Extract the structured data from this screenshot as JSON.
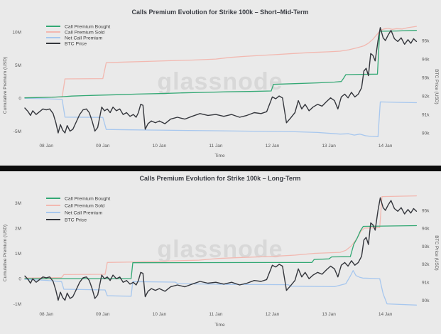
{
  "page": {
    "background_color": "#eaeaea",
    "divider_color": "#0d0d0d",
    "watermark_text": "glassnode",
    "watermark_color": "#d8d8d8",
    "title_color": "#3a3d44",
    "tick_color": "#5a5a5a"
  },
  "btc_price_kusd": [
    [
      7.62,
      91.35
    ],
    [
      7.68,
      91.15
    ],
    [
      7.72,
      90.95
    ],
    [
      7.76,
      91.2
    ],
    [
      7.82,
      91.0
    ],
    [
      7.88,
      91.15
    ],
    [
      7.94,
      91.3
    ],
    [
      8.0,
      91.25
    ],
    [
      8.06,
      91.3
    ],
    [
      8.12,
      91.05
    ],
    [
      8.17,
      90.55
    ],
    [
      8.21,
      90.0
    ],
    [
      8.25,
      90.45
    ],
    [
      8.29,
      90.15
    ],
    [
      8.33,
      90.0
    ],
    [
      8.37,
      90.4
    ],
    [
      8.42,
      90.1
    ],
    [
      8.47,
      90.2
    ],
    [
      8.53,
      90.6
    ],
    [
      8.59,
      91.0
    ],
    [
      8.65,
      91.25
    ],
    [
      8.71,
      91.3
    ],
    [
      8.76,
      91.1
    ],
    [
      8.81,
      90.65
    ],
    [
      8.86,
      90.1
    ],
    [
      8.91,
      90.3
    ],
    [
      8.98,
      91.4
    ],
    [
      9.03,
      91.2
    ],
    [
      9.08,
      91.3
    ],
    [
      9.13,
      91.1
    ],
    [
      9.18,
      91.4
    ],
    [
      9.24,
      91.2
    ],
    [
      9.3,
      91.3
    ],
    [
      9.36,
      91.0
    ],
    [
      9.42,
      91.1
    ],
    [
      9.48,
      90.9
    ],
    [
      9.54,
      91.0
    ],
    [
      9.59,
      90.85
    ],
    [
      9.63,
      91.1
    ],
    [
      9.67,
      91.55
    ],
    [
      9.71,
      91.5
    ],
    [
      9.75,
      90.2
    ],
    [
      9.8,
      90.5
    ],
    [
      9.86,
      90.65
    ],
    [
      9.93,
      90.55
    ],
    [
      10.0,
      90.65
    ],
    [
      10.1,
      90.5
    ],
    [
      10.2,
      90.75
    ],
    [
      10.32,
      90.85
    ],
    [
      10.45,
      90.75
    ],
    [
      10.58,
      90.9
    ],
    [
      10.72,
      91.05
    ],
    [
      10.86,
      90.95
    ],
    [
      11.0,
      91.0
    ],
    [
      11.14,
      90.9
    ],
    [
      11.28,
      91.0
    ],
    [
      11.42,
      90.85
    ],
    [
      11.55,
      90.95
    ],
    [
      11.68,
      91.1
    ],
    [
      11.8,
      91.05
    ],
    [
      11.9,
      91.15
    ],
    [
      12.0,
      91.95
    ],
    [
      12.06,
      91.85
    ],
    [
      12.12,
      92.0
    ],
    [
      12.18,
      91.9
    ],
    [
      12.25,
      90.55
    ],
    [
      12.32,
      90.8
    ],
    [
      12.4,
      91.1
    ],
    [
      12.46,
      91.75
    ],
    [
      12.52,
      91.3
    ],
    [
      12.58,
      91.55
    ],
    [
      12.65,
      91.2
    ],
    [
      12.72,
      91.4
    ],
    [
      12.8,
      91.55
    ],
    [
      12.88,
      91.45
    ],
    [
      12.96,
      91.7
    ],
    [
      13.03,
      91.9
    ],
    [
      13.1,
      91.75
    ],
    [
      13.16,
      91.3
    ],
    [
      13.22,
      91.95
    ],
    [
      13.28,
      92.1
    ],
    [
      13.34,
      91.9
    ],
    [
      13.4,
      92.2
    ],
    [
      13.46,
      91.95
    ],
    [
      13.52,
      92.1
    ],
    [
      13.58,
      92.45
    ],
    [
      13.62,
      93.35
    ],
    [
      13.66,
      93.5
    ],
    [
      13.7,
      93.1
    ],
    [
      13.74,
      94.3
    ],
    [
      13.78,
      94.2
    ],
    [
      13.82,
      93.9
    ],
    [
      13.87,
      95.0
    ],
    [
      13.91,
      95.7
    ],
    [
      13.96,
      95.15
    ],
    [
      14.0,
      95.0
    ],
    [
      14.05,
      95.3
    ],
    [
      14.1,
      95.55
    ],
    [
      14.16,
      95.1
    ],
    [
      14.22,
      94.95
    ],
    [
      14.28,
      95.15
    ],
    [
      14.34,
      94.8
    ],
    [
      14.4,
      95.05
    ],
    [
      14.45,
      94.85
    ],
    [
      14.5,
      95.1
    ],
    [
      14.55,
      94.95
    ]
  ],
  "chart_data": [
    {
      "type": "line",
      "title": "Calls Premium Evolution for Strike 100k – Short–Mid-Term",
      "xlabel": "Time",
      "ylabel_left": "Cumulative Premium (USD)",
      "ylabel_right": "BTC Price (USD)",
      "watermark": "glassnode",
      "x_unit_note": "day of January",
      "xlim": [
        7.545,
        14.595
      ],
      "ylim_left_musd": [
        -7.74,
        11.61
      ],
      "ylim_right_kusd": [
        89.12,
        96.04
      ],
      "x_ticks": [
        {
          "v": 8,
          "label": "08 Jan"
        },
        {
          "v": 9,
          "label": "09 Jan"
        },
        {
          "v": 10,
          "label": "10 Jan"
        },
        {
          "v": 11,
          "label": "11 Jan"
        },
        {
          "v": 12,
          "label": "12 Jan"
        },
        {
          "v": 13,
          "label": "13 Jan"
        },
        {
          "v": 14,
          "label": "14 Jan"
        }
      ],
      "y_ticks_left": [
        {
          "v": 10,
          "label": "10M"
        },
        {
          "v": 5,
          "label": "5M"
        },
        {
          "v": 0,
          "label": "0"
        },
        {
          "v": -5,
          "label": "-5M"
        }
      ],
      "y_ticks_right": [
        {
          "v": 95,
          "label": "95k"
        },
        {
          "v": 94,
          "label": "94k"
        },
        {
          "v": 93,
          "label": "93k"
        },
        {
          "v": 92,
          "label": "92k"
        },
        {
          "v": 91,
          "label": "91k"
        },
        {
          "v": 90,
          "label": "90k"
        }
      ],
      "series": [
        {
          "name": "Call Premium Bought",
          "color": "#33a874",
          "axis": "left",
          "points": [
            [
              7.62,
              0.03
            ],
            [
              8.1,
              0.12
            ],
            [
              8.3,
              0.22
            ],
            [
              8.45,
              0.3
            ],
            [
              8.7,
              0.38
            ],
            [
              9.0,
              0.45
            ],
            [
              9.3,
              0.52
            ],
            [
              9.6,
              0.6
            ],
            [
              10.0,
              0.68
            ],
            [
              10.4,
              0.78
            ],
            [
              10.8,
              0.86
            ],
            [
              11.2,
              0.95
            ],
            [
              11.6,
              1.0
            ],
            [
              11.98,
              1.07
            ],
            [
              12.02,
              2.08
            ],
            [
              12.4,
              2.18
            ],
            [
              12.8,
              2.3
            ],
            [
              13.1,
              2.42
            ],
            [
              13.22,
              2.5
            ],
            [
              13.26,
              3.0
            ],
            [
              13.3,
              3.55
            ],
            [
              13.86,
              3.62
            ],
            [
              13.9,
              10.1
            ],
            [
              14.2,
              10.15
            ],
            [
              14.55,
              10.25
            ]
          ]
        },
        {
          "name": "Call Premium Sold",
          "color": "#f2b8b0",
          "axis": "left",
          "points": [
            [
              7.62,
              0.06
            ],
            [
              8.0,
              0.12
            ],
            [
              8.28,
              0.16
            ],
            [
              8.33,
              2.9
            ],
            [
              9.0,
              2.95
            ],
            [
              9.06,
              5.35
            ],
            [
              9.4,
              5.45
            ],
            [
              9.8,
              5.55
            ],
            [
              10.2,
              5.65
            ],
            [
              10.6,
              5.75
            ],
            [
              11.0,
              5.9
            ],
            [
              11.25,
              6.15
            ],
            [
              11.5,
              6.3
            ],
            [
              11.8,
              6.45
            ],
            [
              12.1,
              6.6
            ],
            [
              12.4,
              6.75
            ],
            [
              12.7,
              6.9
            ],
            [
              13.0,
              7.0
            ],
            [
              13.2,
              7.1
            ],
            [
              13.35,
              7.3
            ],
            [
              13.5,
              7.6
            ],
            [
              13.62,
              7.9
            ],
            [
              13.7,
              8.3
            ],
            [
              13.78,
              8.9
            ],
            [
              13.85,
              9.6
            ],
            [
              13.91,
              10.2
            ],
            [
              13.97,
              10.45
            ],
            [
              14.05,
              10.55
            ],
            [
              14.12,
              10.4
            ],
            [
              14.2,
              10.5
            ],
            [
              14.3,
              10.45
            ],
            [
              14.4,
              10.65
            ],
            [
              14.55,
              10.85
            ]
          ]
        },
        {
          "name": "Net Call Premium",
          "color": "#a7c7ee",
          "axis": "left",
          "points": [
            [
              7.62,
              -0.04
            ],
            [
              8.0,
              -0.1
            ],
            [
              8.28,
              -0.2
            ],
            [
              8.33,
              -2.88
            ],
            [
              9.0,
              -2.92
            ],
            [
              9.06,
              -4.75
            ],
            [
              9.5,
              -4.8
            ],
            [
              10.0,
              -4.85
            ],
            [
              10.5,
              -4.9
            ],
            [
              11.0,
              -4.95
            ],
            [
              11.5,
              -5.0
            ],
            [
              12.0,
              -5.05
            ],
            [
              12.4,
              -5.1
            ],
            [
              12.8,
              -5.2
            ],
            [
              13.05,
              -5.35
            ],
            [
              13.2,
              -5.45
            ],
            [
              13.35,
              -5.4
            ],
            [
              13.45,
              -5.6
            ],
            [
              13.55,
              -5.45
            ],
            [
              13.65,
              -5.7
            ],
            [
              13.75,
              -5.8
            ],
            [
              13.87,
              -5.85
            ],
            [
              13.91,
              -0.58
            ],
            [
              14.2,
              -0.65
            ],
            [
              14.55,
              -0.7
            ]
          ]
        },
        {
          "name": "BTC Price",
          "color": "#34363c",
          "axis": "right",
          "points_ref": "btc_price_kusd"
        }
      ]
    },
    {
      "type": "line",
      "title": "Calls Premium Evolution for Strike 100k – Long-Term",
      "xlabel": "Time",
      "ylabel_left": "Cumulative Premium (USD)",
      "ylabel_right": "BTC Price (USD)",
      "watermark": "glassnode",
      "x_unit_note": "day of January",
      "xlim": [
        7.545,
        14.595
      ],
      "ylim_left_musd": [
        -1.35,
        3.38
      ],
      "ylim_right_kusd": [
        89.31,
        95.95
      ],
      "x_ticks": [
        {
          "v": 8,
          "label": "08 Jan"
        },
        {
          "v": 9,
          "label": "09 Jan"
        },
        {
          "v": 10,
          "label": "10 Jan"
        },
        {
          "v": 11,
          "label": "11 Jan"
        },
        {
          "v": 12,
          "label": "12 Jan"
        },
        {
          "v": 13,
          "label": "13 Jan"
        },
        {
          "v": 14,
          "label": "14 Jan"
        }
      ],
      "y_ticks_left": [
        {
          "v": 3,
          "label": "3M"
        },
        {
          "v": 2,
          "label": "2M"
        },
        {
          "v": 1,
          "label": "1M"
        },
        {
          "v": 0,
          "label": "0"
        },
        {
          "v": -1,
          "label": "-1M"
        }
      ],
      "y_ticks_right": [
        {
          "v": 95,
          "label": "95k"
        },
        {
          "v": 94,
          "label": "94k"
        },
        {
          "v": 93,
          "label": "93k"
        },
        {
          "v": 92,
          "label": "92k"
        },
        {
          "v": 91,
          "label": "91k"
        },
        {
          "v": 90,
          "label": "90k"
        }
      ],
      "series": [
        {
          "name": "Call Premium Bought",
          "color": "#33a874",
          "axis": "left",
          "points": [
            [
              7.62,
              0.0
            ],
            [
              9.5,
              0.0
            ],
            [
              9.53,
              0.63
            ],
            [
              12.7,
              0.64
            ],
            [
              12.74,
              0.76
            ],
            [
              13.0,
              0.78
            ],
            [
              13.05,
              0.86
            ],
            [
              13.38,
              0.87
            ],
            [
              13.44,
              1.35
            ],
            [
              13.5,
              1.6
            ],
            [
              13.56,
              1.9
            ],
            [
              13.61,
              2.07
            ],
            [
              14.55,
              2.1
            ]
          ]
        },
        {
          "name": "Call Premium Sold",
          "color": "#f2b8b0",
          "axis": "left",
          "points": [
            [
              7.62,
              0.02
            ],
            [
              8.27,
              0.04
            ],
            [
              8.31,
              0.16
            ],
            [
              9.04,
              0.17
            ],
            [
              9.08,
              0.64
            ],
            [
              9.6,
              0.66
            ],
            [
              10.2,
              0.7
            ],
            [
              10.7,
              0.73
            ],
            [
              11.05,
              0.8
            ],
            [
              11.5,
              0.84
            ],
            [
              12.0,
              0.88
            ],
            [
              12.4,
              0.93
            ],
            [
              12.75,
              1.0
            ],
            [
              13.2,
              1.04
            ],
            [
              13.3,
              1.12
            ],
            [
              13.4,
              1.3
            ],
            [
              13.5,
              1.6
            ],
            [
              13.57,
              1.88
            ],
            [
              13.63,
              2.0
            ],
            [
              13.9,
              2.02
            ],
            [
              13.94,
              3.25
            ],
            [
              14.55,
              3.28
            ]
          ]
        },
        {
          "name": "Net Call Premium",
          "color": "#a7c7ee",
          "axis": "left",
          "points": [
            [
              7.62,
              -0.03
            ],
            [
              8.0,
              -0.07
            ],
            [
              8.27,
              -0.12
            ],
            [
              8.31,
              -0.42
            ],
            [
              9.04,
              -0.45
            ],
            [
              9.08,
              -0.68
            ],
            [
              9.5,
              -0.7
            ],
            [
              9.53,
              -0.12
            ],
            [
              10.28,
              -0.14
            ],
            [
              10.33,
              -0.2
            ],
            [
              11.2,
              -0.23
            ],
            [
              12.28,
              -0.24
            ],
            [
              12.33,
              -0.3
            ],
            [
              13.1,
              -0.32
            ],
            [
              13.3,
              -0.2
            ],
            [
              13.38,
              0.1
            ],
            [
              13.43,
              0.32
            ],
            [
              13.48,
              0.12
            ],
            [
              13.55,
              0.05
            ],
            [
              13.6,
              0.02
            ],
            [
              13.9,
              0.0
            ],
            [
              13.96,
              -0.6
            ],
            [
              14.03,
              -1.0
            ],
            [
              14.55,
              -1.05
            ]
          ]
        },
        {
          "name": "BTC Price",
          "color": "#34363c",
          "axis": "right",
          "points_ref": "btc_price_kusd"
        }
      ]
    }
  ]
}
